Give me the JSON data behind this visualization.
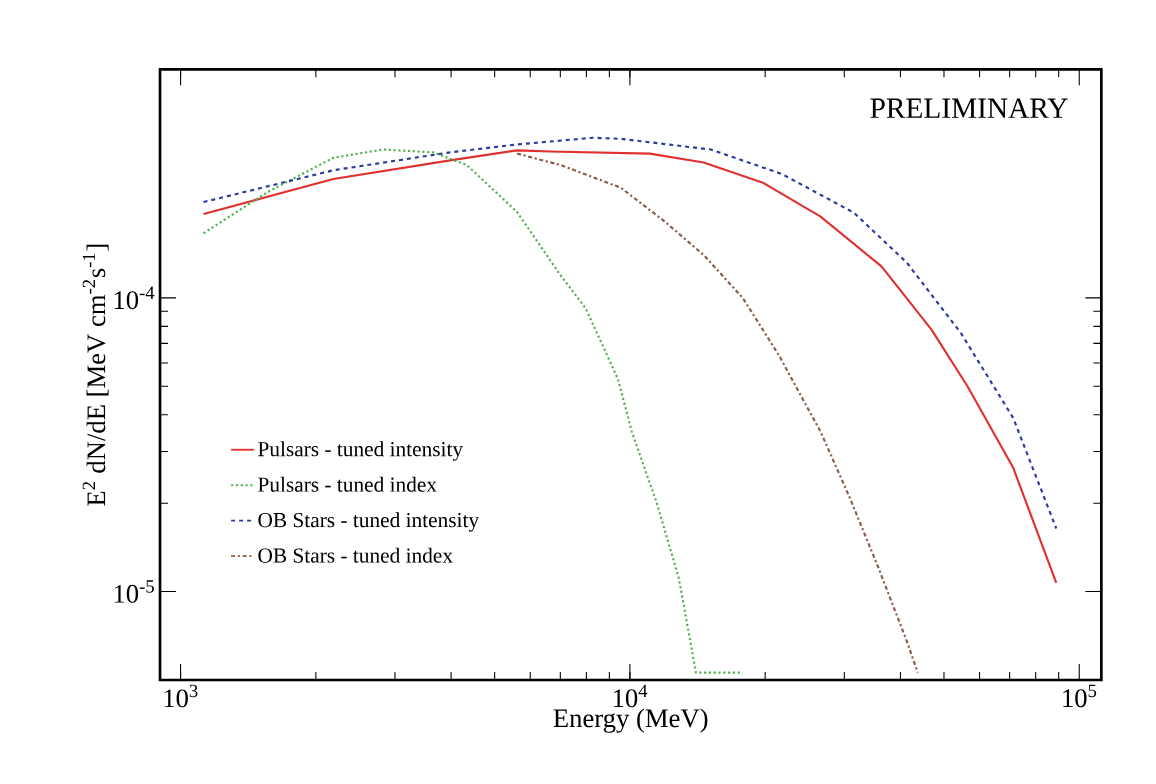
{
  "chart_data": {
    "type": "line",
    "xlabel": "Energy (MeV)",
    "ylabel": "E$^{2}$ dN/dE [MeV cm$^{-2}$s$^{-1}$]",
    "log": "xy",
    "xlim": [
      900,
      112000
    ],
    "ylim": [
      5e-06,
      0.0006
    ],
    "xticks": [
      {
        "value": 1000,
        "label": "10$^{3}$"
      },
      {
        "value": 10000,
        "label": "10$^{4}$"
      },
      {
        "value": 100000,
        "label": "10$^{5}$"
      }
    ],
    "yticks": [
      {
        "value": 1e-05,
        "label": "10$^{-5}$"
      },
      {
        "value": 0.0001,
        "label": "10$^{-4}$"
      }
    ],
    "legend": "bottom left",
    "grid": false,
    "marker": "none",
    "annotations": [
      "PRELIMINARY"
    ],
    "series": [
      {
        "name": "Pulsars - tuned intensity",
        "color": "#e03030",
        "line_style": "solid",
        "x": [
          1125,
          2188,
          3981,
          5610,
          6640,
          11070,
          14590,
          19850,
          26570,
          36300,
          46900,
          56400,
          71300,
          88900
        ],
        "values": [
          0.000193,
          0.000254,
          0.000294,
          0.000318,
          0.000315,
          0.00031,
          0.000289,
          0.000246,
          0.000189,
          0.000128,
          7.8e-05,
          5e-05,
          2.64e-05,
          1.07e-05
        ]
      },
      {
        "name": "Pulsars - tuned index",
        "color": "#50b050",
        "line_style": "dotted",
        "x": [
          1125,
          1560,
          2188,
          2825,
          3650,
          4340,
          5610,
          6990,
          7980,
          9400,
          10100,
          11480,
          12850,
          14030,
          17830
        ],
        "values": [
          0.000166,
          0.000229,
          0.0003,
          0.00032,
          0.000313,
          0.000283,
          0.000196,
          0.00012,
          9.2e-05,
          5.3e-05,
          3.5e-05,
          2e-05,
          1.11e-05,
          5.3e-06,
          5.3e-06
        ]
      },
      {
        "name": "OB Stars - tuned intensity",
        "color": "#2a3aa0",
        "line_style": "dashed",
        "x": [
          1125,
          2188,
          3981,
          5610,
          8280,
          9550,
          15140,
          21800,
          31500,
          41300,
          54500,
          71300,
          88900
        ],
        "values": [
          0.000212,
          0.000272,
          0.000313,
          0.000333,
          0.000351,
          0.000348,
          0.00032,
          0.000264,
          0.000195,
          0.000132,
          7.6e-05,
          3.9e-05,
          1.64e-05
        ]
      },
      {
        "name": "OB Stars - tuned index",
        "color": "#8b5a48",
        "line_style": "dashdot",
        "x": [
          5610,
          7030,
          9550,
          11900,
          14590,
          17830,
          21430,
          26570,
          30800,
          35700,
          41300,
          43700
        ],
        "values": [
          0.00031,
          0.000283,
          0.000237,
          0.000183,
          0.00014,
          0.0001,
          6.4e-05,
          3.5e-05,
          2.1e-05,
          1.21e-05,
          6.8e-06,
          5.3e-06
        ]
      }
    ]
  }
}
